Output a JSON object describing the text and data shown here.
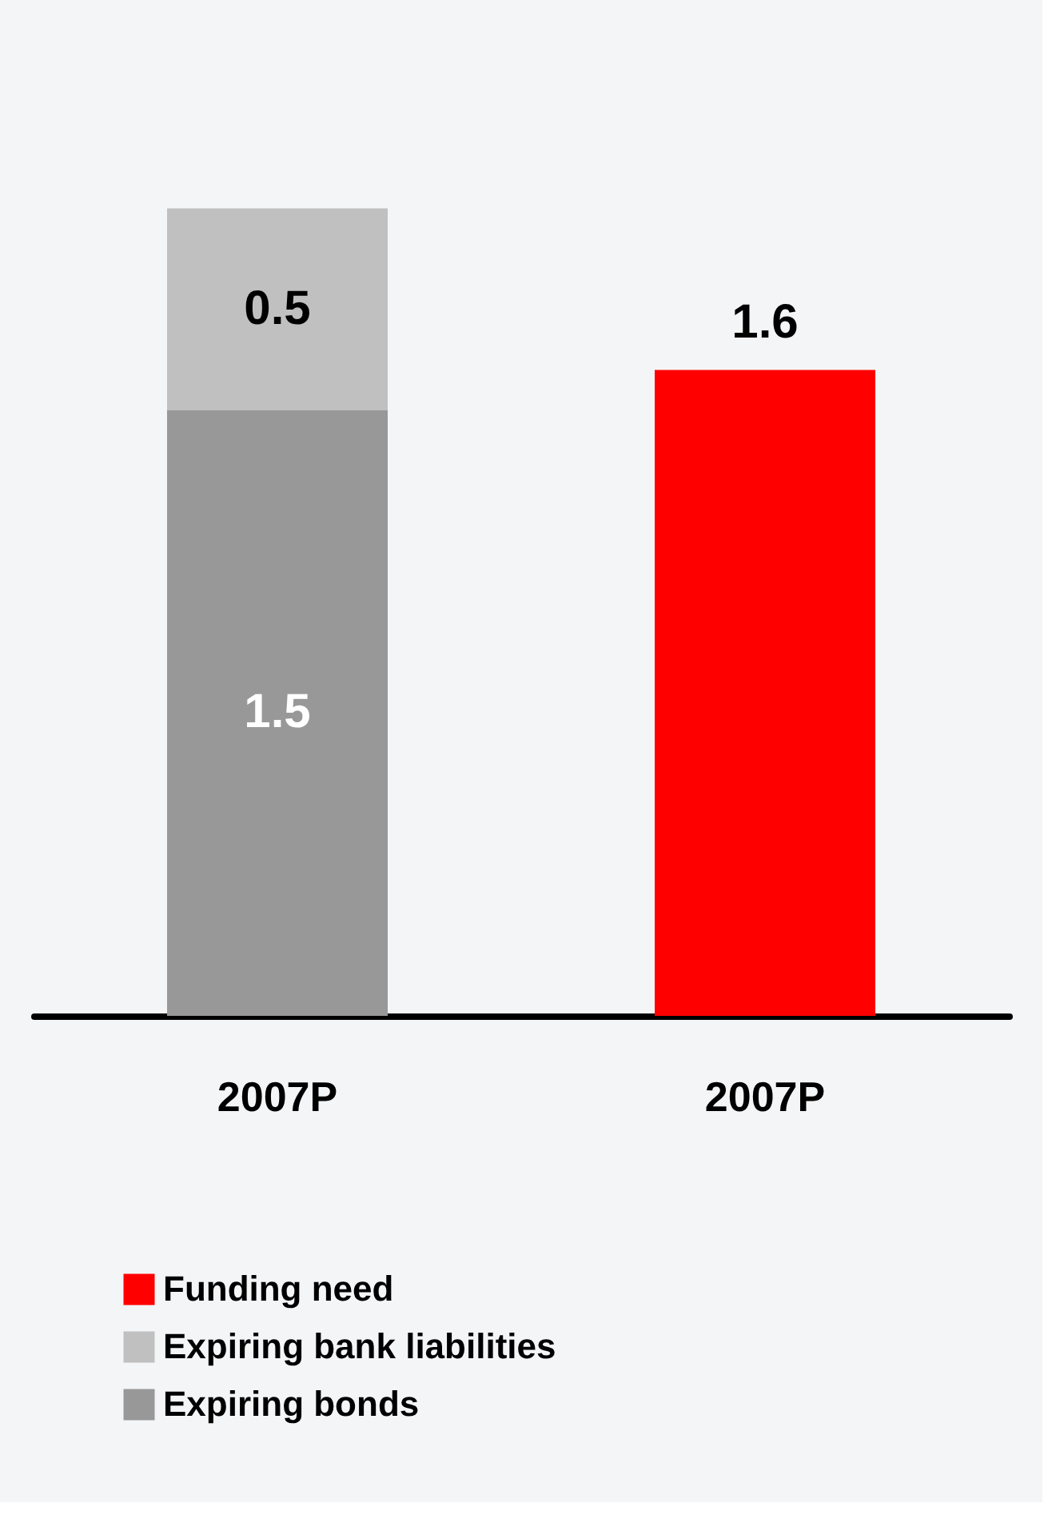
{
  "chart_data": {
    "type": "bar",
    "stacked": true,
    "data_labels": true,
    "legend": "bottom",
    "grid": false,
    "tick_labels": "x",
    "categories": [
      "2007P",
      "2007P"
    ],
    "series": [
      {
        "name": "Expiring bonds",
        "color": "#989898",
        "values": [
          1.5,
          null
        ]
      },
      {
        "name": "Expiring bank liabilities",
        "color": "#c0c0c0",
        "values": [
          0.5,
          null
        ]
      },
      {
        "name": "Funding need",
        "color": "#ff0000",
        "values": [
          null,
          1.6
        ]
      }
    ]
  }
}
